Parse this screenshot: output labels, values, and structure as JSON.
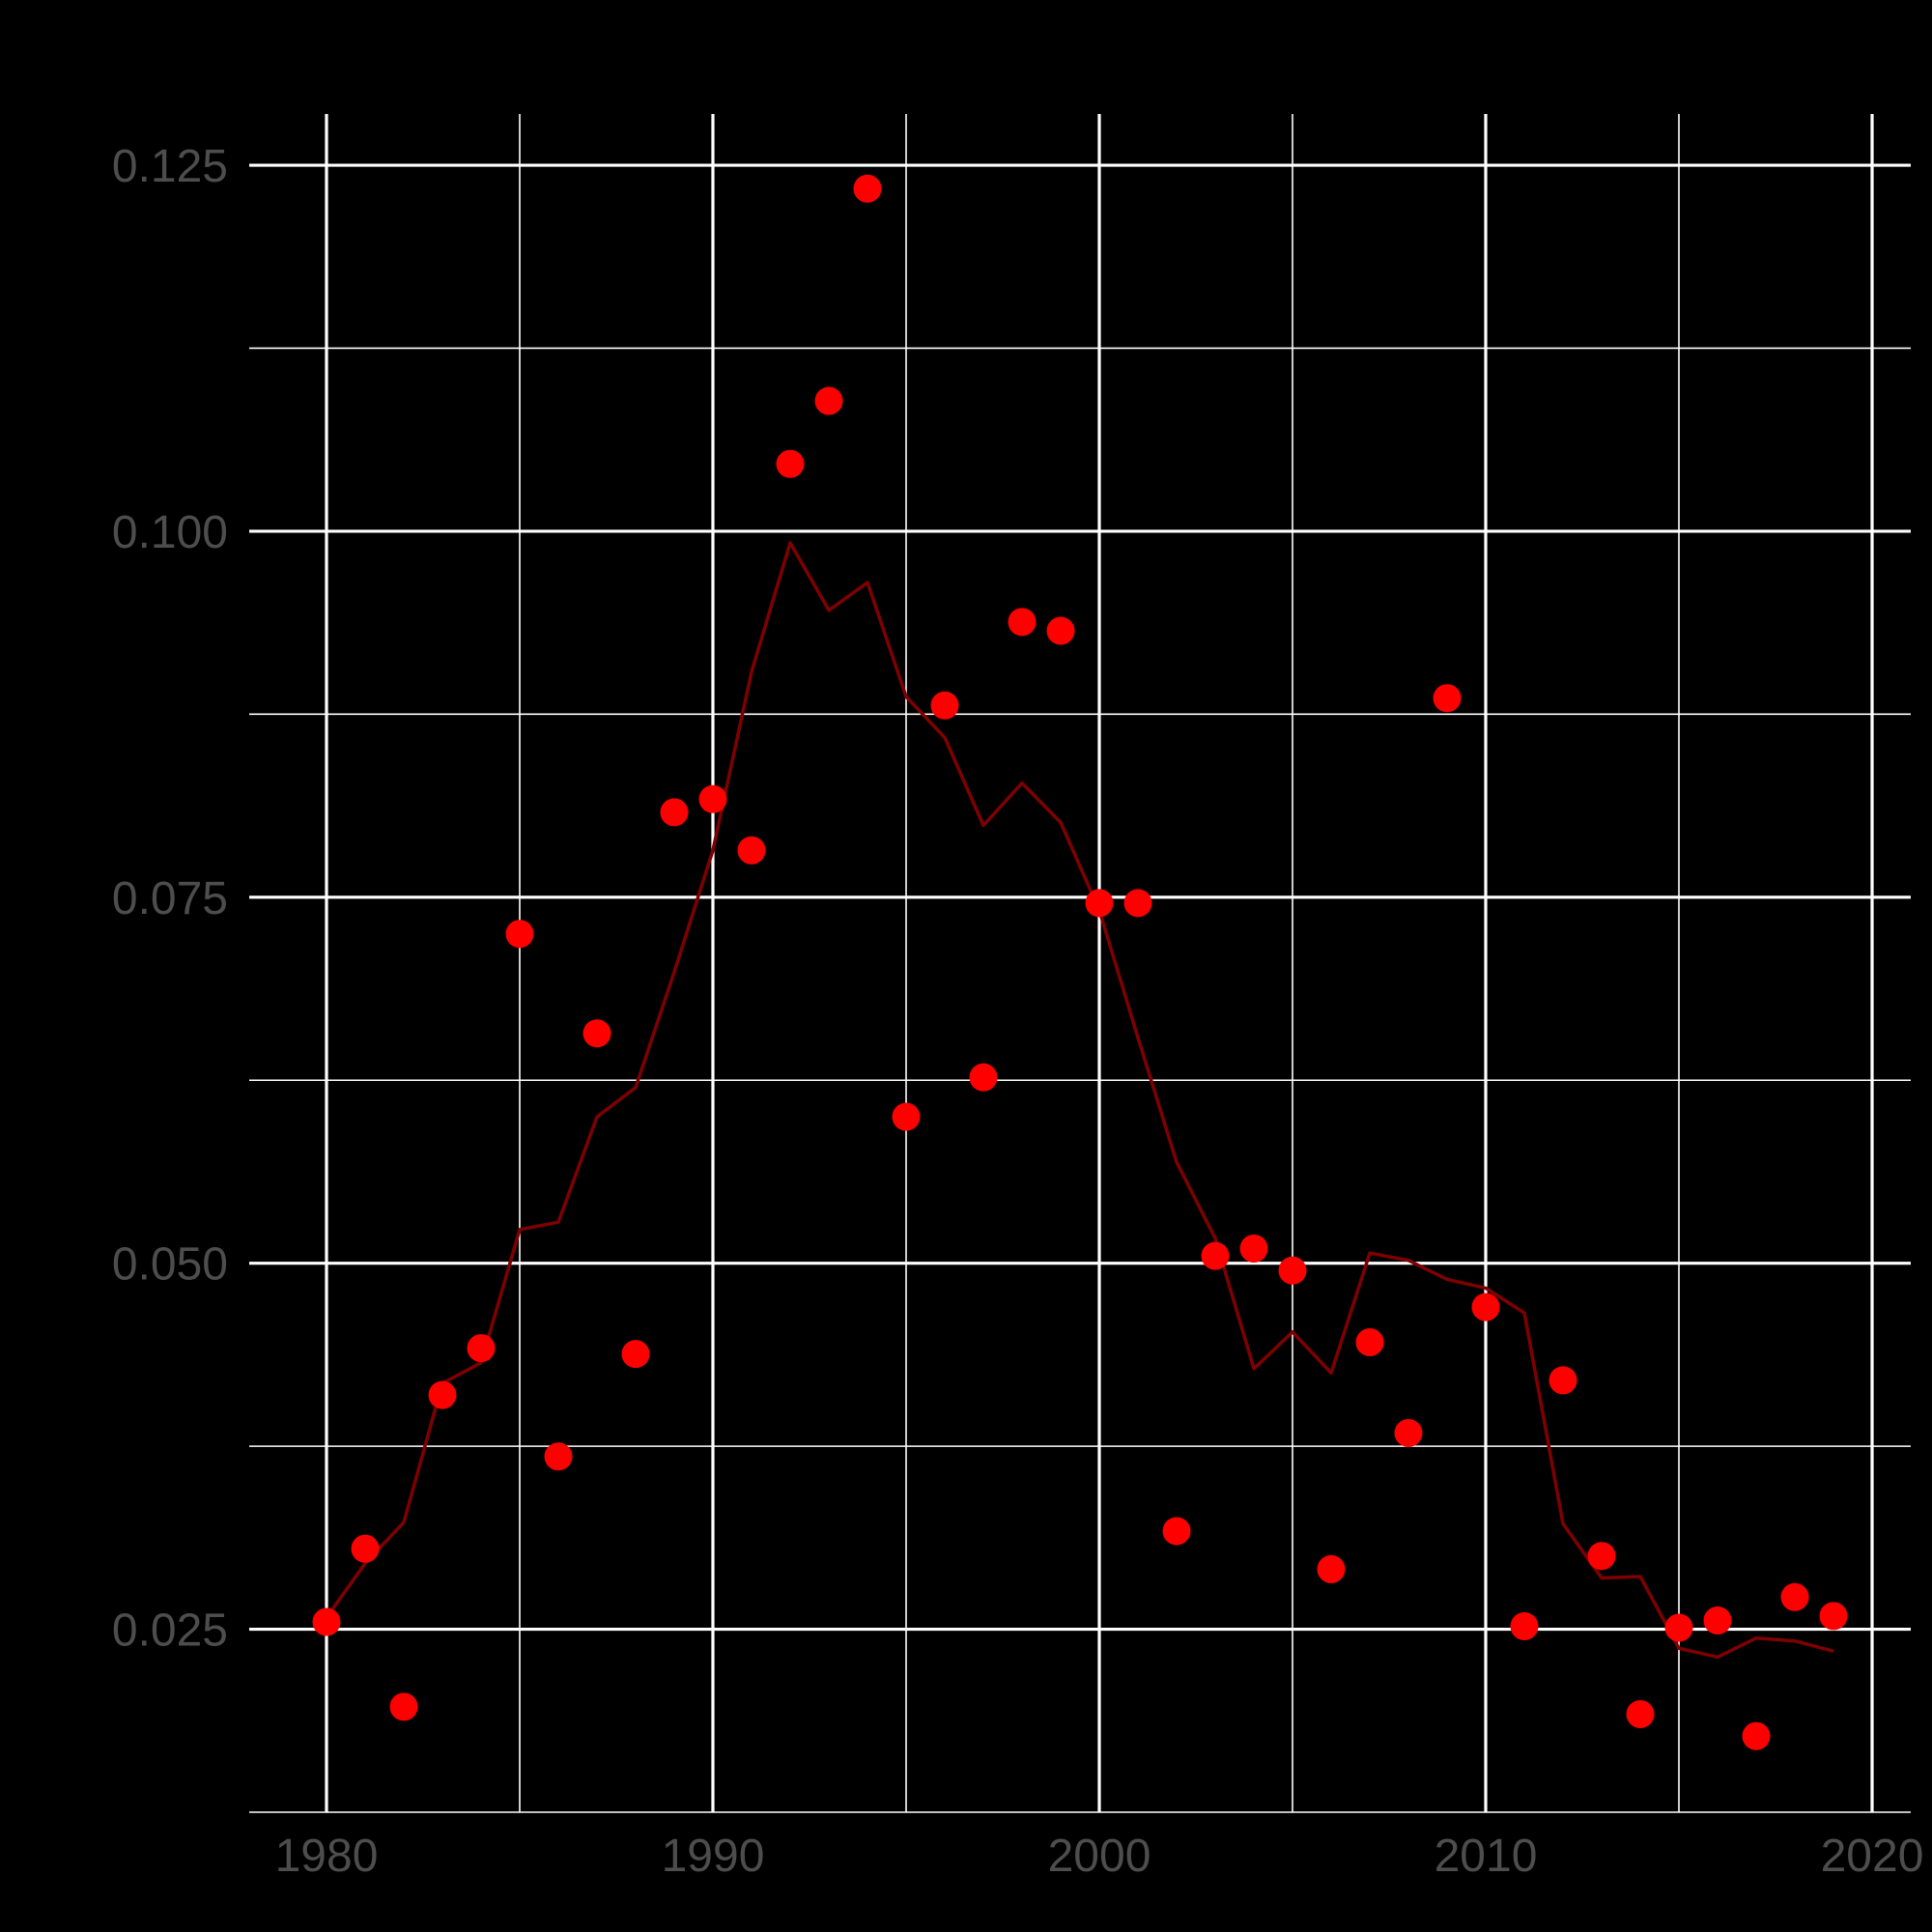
{
  "chart_data": {
    "type": "scatter",
    "title": "",
    "xlabel": "",
    "ylabel": "",
    "xlim": [
      1978,
      2021
    ],
    "ylim": [
      0.0125,
      0.1285
    ],
    "x_ticks": [
      1980,
      1990,
      2000,
      2010,
      2020
    ],
    "x_tick_labels": [
      "1980",
      "1990",
      "2000",
      "2010",
      "2020"
    ],
    "x_minor_ticks": [
      1985,
      1995,
      2005,
      2015
    ],
    "y_ticks": [
      0.025,
      0.05,
      0.075,
      0.1,
      0.125
    ],
    "y_tick_labels": [
      "0.025",
      "0.050",
      "0.075",
      "0.100",
      "0.125"
    ],
    "y_minor_ticks": [
      0.0125,
      0.0375,
      0.0625,
      0.0875,
      0.1125
    ],
    "grid": true,
    "legend": "none",
    "colors": {
      "background": "#000000",
      "grid": "#ffffff",
      "tick_label": "#4d4d4d",
      "points": "#ff0000",
      "line": "#7f0000"
    },
    "series": [
      {
        "type": "scatter",
        "x": [
          1980,
          1981,
          1982,
          1983,
          1984,
          1985,
          1986,
          1987,
          1988,
          1989,
          1990,
          1991,
          1992,
          1993,
          1994,
          1995,
          1996,
          1997,
          1998,
          1999,
          2000,
          2001,
          2002,
          2003,
          2004,
          2005,
          2006,
          2007,
          2008,
          2009,
          2010,
          2011,
          2012,
          2013,
          2014,
          2015,
          2016,
          2017,
          2018,
          2019
        ],
        "y": [
          0.0255,
          0.0305,
          0.0197,
          0.041,
          0.0442,
          0.0725,
          0.0368,
          0.0657,
          0.0438,
          0.0808,
          0.0817,
          0.0782,
          0.1046,
          0.1089,
          0.1234,
          0.06,
          0.0881,
          0.0627,
          0.0938,
          0.0932,
          0.0746,
          0.0746,
          0.0317,
          0.0505,
          0.051,
          0.0495,
          0.0291,
          0.0446,
          0.0384,
          0.0886,
          0.047,
          0.0252,
          0.042,
          0.03,
          0.0192,
          0.0251,
          0.0256,
          0.0177,
          0.0272,
          0.0259
        ]
      },
      {
        "type": "line",
        "x": [
          1980,
          1981,
          1982,
          1983,
          1984,
          1985,
          1986,
          1987,
          1988,
          1989,
          1990,
          1991,
          1992,
          1993,
          1994,
          1995,
          1996,
          1997,
          1998,
          1999,
          2000,
          2001,
          2002,
          2003,
          2004,
          2005,
          2006,
          2007,
          2008,
          2009,
          2010,
          2011,
          2012,
          2013,
          2014,
          2015,
          2016,
          2017,
          2018,
          2019
        ],
        "y": [
          0.0258,
          0.0295,
          0.0323,
          0.0418,
          0.0432,
          0.0523,
          0.0528,
          0.06,
          0.062,
          0.0699,
          0.0782,
          0.0904,
          0.0992,
          0.0946,
          0.0965,
          0.0887,
          0.0859,
          0.0799,
          0.0828,
          0.0801,
          0.0741,
          0.0654,
          0.0569,
          0.0517,
          0.0428,
          0.0453,
          0.0425,
          0.0507,
          0.0502,
          0.0489,
          0.0483,
          0.0466,
          0.0322,
          0.0285,
          0.0286,
          0.0237,
          0.0231,
          0.0244,
          0.0242,
          0.0235
        ]
      }
    ]
  }
}
